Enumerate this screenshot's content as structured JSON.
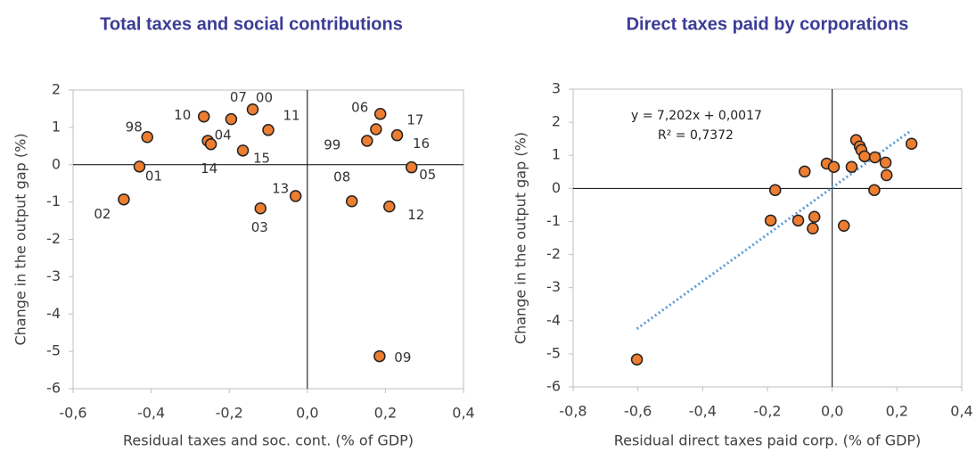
{
  "chart_data": [
    {
      "type": "scatter",
      "title": "Total taxes and social contributions",
      "x_label": "Residual taxes and soc. cont. (% of GDP)",
      "y_label": "Change in the output gap (%)",
      "color": "#ed7d31",
      "labels": [
        "98",
        "01",
        "02",
        "10",
        "04",
        "14",
        "07",
        "00",
        "11",
        "15",
        "03",
        "13",
        "06",
        "17",
        "99",
        "16",
        "05",
        "08",
        "12",
        "09"
      ],
      "x": [
        -0.41,
        -0.43,
        -0.47,
        -0.265,
        -0.255,
        -0.247,
        -0.195,
        -0.14,
        -0.1,
        -0.165,
        -0.12,
        -0.03,
        0.187,
        0.176,
        0.153,
        0.23,
        0.267,
        0.114,
        0.21,
        0.185
      ],
      "y": [
        0.74,
        -0.05,
        -0.93,
        1.29,
        0.64,
        0.55,
        1.22,
        1.48,
        0.93,
        0.38,
        -1.17,
        -0.84,
        1.36,
        0.95,
        0.64,
        0.79,
        -0.07,
        -0.98,
        -1.12,
        -5.13
      ],
      "xlim": [
        -0.6,
        0.4
      ],
      "xticks": [
        {
          "value": -0.6,
          "label": "-0,6"
        },
        {
          "value": -0.4,
          "label": "-0,4"
        },
        {
          "value": -0.2,
          "label": "-0,2"
        },
        {
          "value": 0,
          "label": "0,0"
        },
        {
          "value": 0.2,
          "label": "0,2"
        },
        {
          "value": 0.4,
          "label": "0,4"
        }
      ],
      "ylim": [
        -6,
        2
      ],
      "yticks": [
        -6,
        -5,
        -4,
        -3,
        -2,
        -1,
        0,
        1,
        2
      ]
    },
    {
      "type": "scatter",
      "title": "Direct taxes paid by corporations",
      "x_label": "Residual direct taxes paid corp.  (% of GDP)",
      "y_label": "Change in the output gap (%)",
      "color": "#ed7d31",
      "trendline": true,
      "trend_color": "#5b9bd5",
      "annotations": [
        "y = 7,202x + 0,0017",
        "R² = 0,7372"
      ],
      "x": [
        -0.603,
        -0.176,
        -0.19,
        -0.085,
        -0.017,
        0.005,
        -0.105,
        -0.055,
        -0.06,
        0.036,
        0.06,
        0.074,
        0.085,
        0.09,
        0.1,
        0.132,
        0.13,
        0.165,
        0.168,
        0.245
      ],
      "y": [
        -5.17,
        -0.05,
        -0.97,
        0.51,
        0.75,
        0.65,
        -0.97,
        -0.86,
        -1.21,
        -1.13,
        0.65,
        1.46,
        1.27,
        1.16,
        0.97,
        0.94,
        -0.05,
        0.78,
        0.4,
        1.35
      ],
      "xlim": [
        -0.8,
        0.4
      ],
      "xticks": [
        {
          "value": -0.8,
          "label": "-0,8"
        },
        {
          "value": -0.6,
          "label": "-0,6"
        },
        {
          "value": -0.4,
          "label": "-0,4"
        },
        {
          "value": -0.2,
          "label": "-0,2"
        },
        {
          "value": 0,
          "label": "0,0"
        },
        {
          "value": 0.2,
          "label": "0,2"
        },
        {
          "value": 0.4,
          "label": "0,4"
        }
      ],
      "ylim": [
        -6,
        3
      ],
      "yticks": [
        -6,
        -5,
        -4,
        -3,
        -2,
        -1,
        0,
        1,
        2,
        3
      ]
    }
  ]
}
